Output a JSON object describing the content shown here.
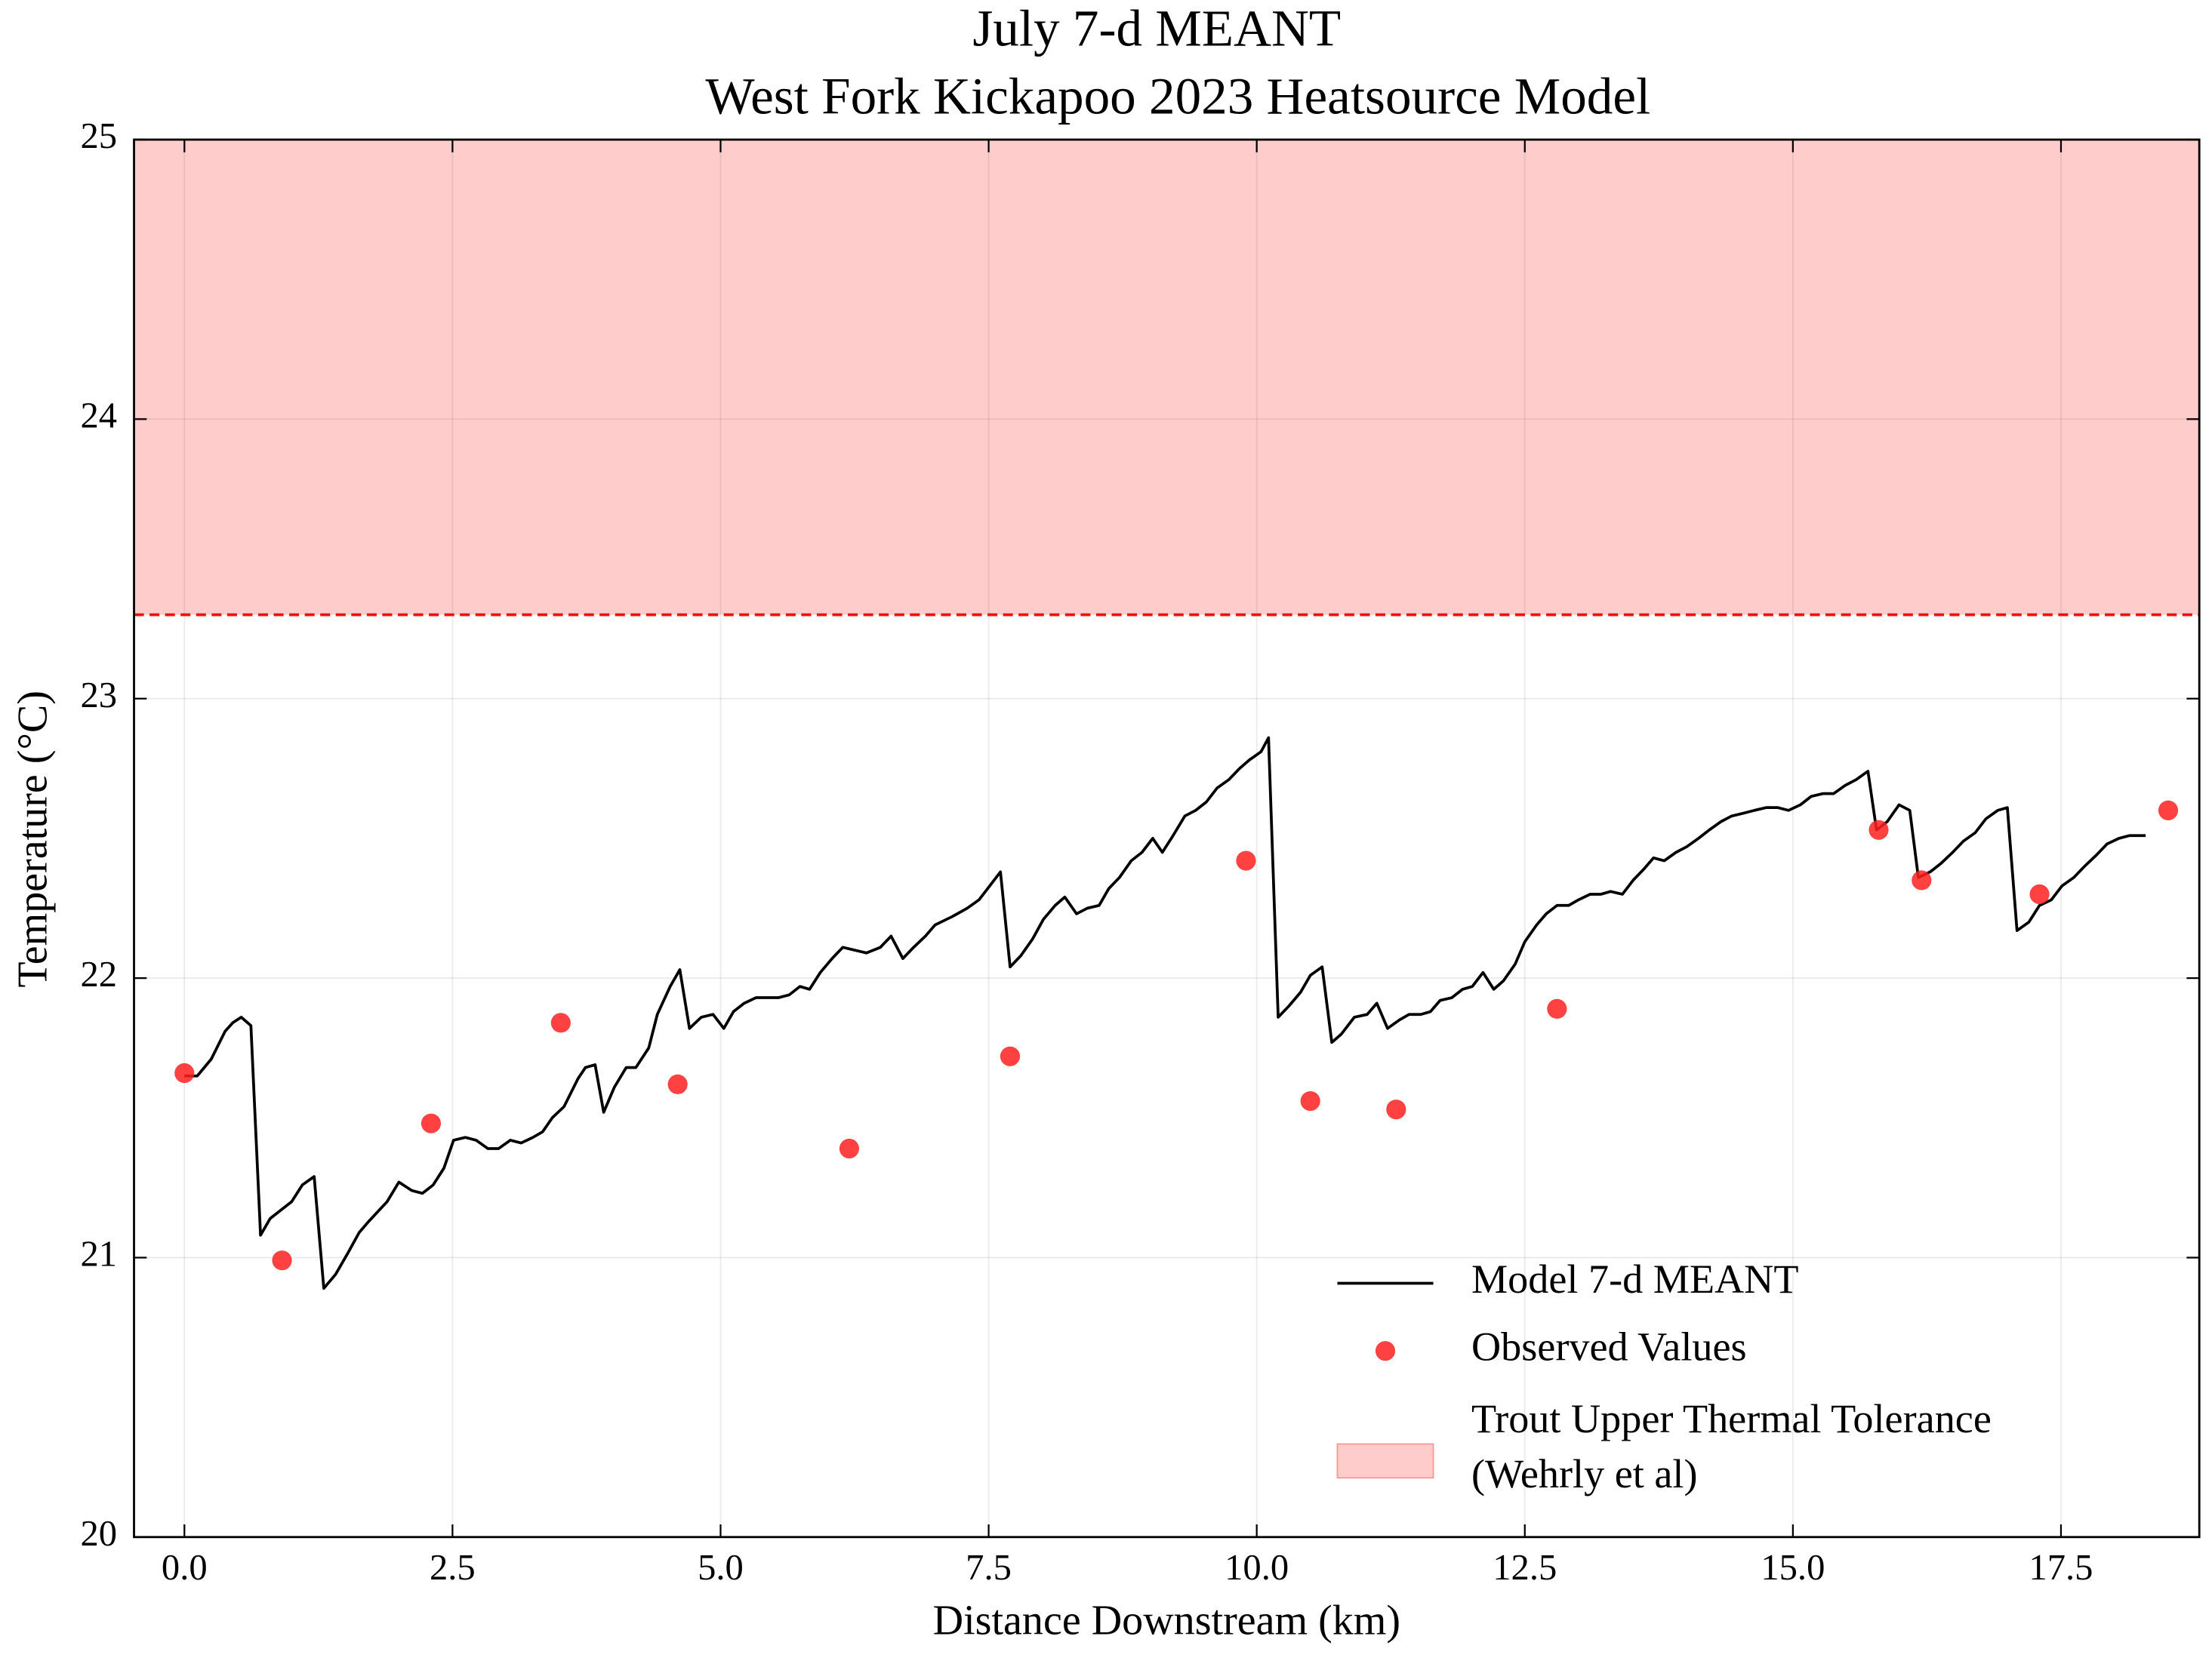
{
  "chart_data": {
    "type": "line",
    "title": "July 7-d MEANT",
    "subtitle": "West Fork Kickapoo 2023 Heatsource Model",
    "x_label": "Distance Downstream (km)",
    "y_label": "Temperature (°C)",
    "xlim": [
      -0.47,
      18.79
    ],
    "ylim": [
      20,
      25
    ],
    "xticks": [
      {
        "value": 0,
        "label": "0.0"
      },
      2.5,
      {
        "value": 5,
        "label": "5.0"
      },
      7.5,
      {
        "value": 10,
        "label": "10.0"
      },
      12.5,
      {
        "value": 15,
        "label": "15.0"
      },
      17.5
    ],
    "yticks": [
      20,
      21,
      22,
      23,
      24,
      25
    ],
    "grid": true,
    "legend": "lower right",
    "series": [
      {
        "name": "Model 7-d MEANT",
        "kind": "line",
        "color": "#000000",
        "x": [
          0,
          0.12,
          0.25,
          0.38,
          0.45,
          0.53,
          0.62,
          0.71,
          0.8,
          1.0,
          1.1,
          1.21,
          1.3,
          1.41,
          1.53,
          1.63,
          1.72,
          1.89,
          2.0,
          2.12,
          2.22,
          2.32,
          2.42,
          2.51,
          2.62,
          2.72,
          2.83,
          2.93,
          3.04,
          3.14,
          3.25,
          3.34,
          3.43,
          3.54,
          3.67,
          3.74,
          3.83,
          3.91,
          4.01,
          4.12,
          4.21,
          4.33,
          4.41,
          4.53,
          4.62,
          4.71,
          4.82,
          4.93,
          5.03,
          5.12,
          5.22,
          5.33,
          5.43,
          5.54,
          5.64,
          5.74,
          5.83,
          5.93,
          6.04,
          6.14,
          6.25,
          6.36,
          6.49,
          6.59,
          6.7,
          6.8,
          6.91,
          7.0,
          7.16,
          7.3,
          7.41,
          7.51,
          7.61,
          7.7,
          7.8,
          7.91,
          8.01,
          8.12,
          8.21,
          8.32,
          8.42,
          8.53,
          8.62,
          8.72,
          8.83,
          8.93,
          9.03,
          9.12,
          9.22,
          9.33,
          9.43,
          9.53,
          9.63,
          9.74,
          9.84,
          9.93,
          10.04,
          10.11,
          10.2,
          10.3,
          10.41,
          10.5,
          10.61,
          10.7,
          10.79,
          10.91,
          11.03,
          11.12,
          11.22,
          11.33,
          11.42,
          11.53,
          11.62,
          11.71,
          11.82,
          11.92,
          12.01,
          12.11,
          12.21,
          12.3,
          12.41,
          12.5,
          12.61,
          12.7,
          12.8,
          12.91,
          13.0,
          13.11,
          13.21,
          13.3,
          13.41,
          13.51,
          13.61,
          13.7,
          13.8,
          13.91,
          14.01,
          14.12,
          14.22,
          14.33,
          14.43,
          14.54,
          14.64,
          14.75,
          14.86,
          14.96,
          15.07,
          15.17,
          15.28,
          15.38,
          15.49,
          15.59,
          15.7,
          15.78,
          15.88,
          15.99,
          16.09,
          16.17,
          16.28,
          16.38,
          16.49,
          16.59,
          16.7,
          16.8,
          16.91,
          17.0,
          17.09,
          17.2,
          17.3,
          17.41,
          17.51,
          17.62,
          17.72,
          17.83,
          17.93,
          18.04,
          18.14,
          18.29
        ],
        "values": [
          21.65,
          21.65,
          21.71,
          21.81,
          21.84,
          21.86,
          21.83,
          21.08,
          21.14,
          21.2,
          21.26,
          21.29,
          20.89,
          20.94,
          21.02,
          21.09,
          21.13,
          21.2,
          21.27,
          21.24,
          21.23,
          21.26,
          21.32,
          21.42,
          21.43,
          21.42,
          21.39,
          21.39,
          21.42,
          21.41,
          21.43,
          21.45,
          21.5,
          21.54,
          21.64,
          21.68,
          21.69,
          21.52,
          21.61,
          21.68,
          21.68,
          21.75,
          21.87,
          21.97,
          22.03,
          21.82,
          21.86,
          21.87,
          21.82,
          21.88,
          21.91,
          21.93,
          21.93,
          21.93,
          21.94,
          21.97,
          21.96,
          22.02,
          22.07,
          22.11,
          22.1,
          22.09,
          22.11,
          22.15,
          22.07,
          22.11,
          22.15,
          22.19,
          22.22,
          22.25,
          22.28,
          22.33,
          22.38,
          22.04,
          22.08,
          22.14,
          22.21,
          22.26,
          22.29,
          22.23,
          22.25,
          22.26,
          22.32,
          22.36,
          22.42,
          22.45,
          22.5,
          22.45,
          22.51,
          22.58,
          22.6,
          22.63,
          22.68,
          22.71,
          22.75,
          22.78,
          22.81,
          22.86,
          21.86,
          21.9,
          21.95,
          22.01,
          22.04,
          21.77,
          21.8,
          21.86,
          21.87,
          21.91,
          21.82,
          21.85,
          21.87,
          21.87,
          21.88,
          21.92,
          21.93,
          21.96,
          21.97,
          22.02,
          21.96,
          21.99,
          22.05,
          22.13,
          22.19,
          22.23,
          22.26,
          22.26,
          22.28,
          22.3,
          22.3,
          22.31,
          22.3,
          22.35,
          22.39,
          22.43,
          22.42,
          22.45,
          22.47,
          22.5,
          22.53,
          22.56,
          22.58,
          22.59,
          22.6,
          22.61,
          22.61,
          22.6,
          22.62,
          22.65,
          22.66,
          22.66,
          22.69,
          22.71,
          22.74,
          22.53,
          22.56,
          22.62,
          22.6,
          22.36,
          22.38,
          22.41,
          22.45,
          22.49,
          22.52,
          22.57,
          22.6,
          22.61,
          22.17,
          22.2,
          22.26,
          22.28,
          22.33,
          22.36,
          22.4,
          22.44,
          22.48,
          22.5,
          22.51,
          22.51
        ]
      },
      {
        "name": "Observed Values",
        "kind": "scatter",
        "color": "#ff2020",
        "x": [
          0,
          0.91,
          2.3,
          3.51,
          4.6,
          6.2,
          7.7,
          9.9,
          10.5,
          11.3,
          12.8,
          15.8,
          16.2,
          17.3,
          18.5
        ],
        "values": [
          21.66,
          20.99,
          21.48,
          21.84,
          21.62,
          21.39,
          21.72,
          22.42,
          21.56,
          21.53,
          21.89,
          22.53,
          22.35,
          22.3,
          22.6
        ]
      }
    ],
    "band": {
      "label": [
        "Trout Upper Thermal Tolerance",
        "(Wehrly et al)"
      ],
      "range": [
        23.3,
        25
      ],
      "color": "#ff9999",
      "line_color": "#ee1111"
    }
  }
}
